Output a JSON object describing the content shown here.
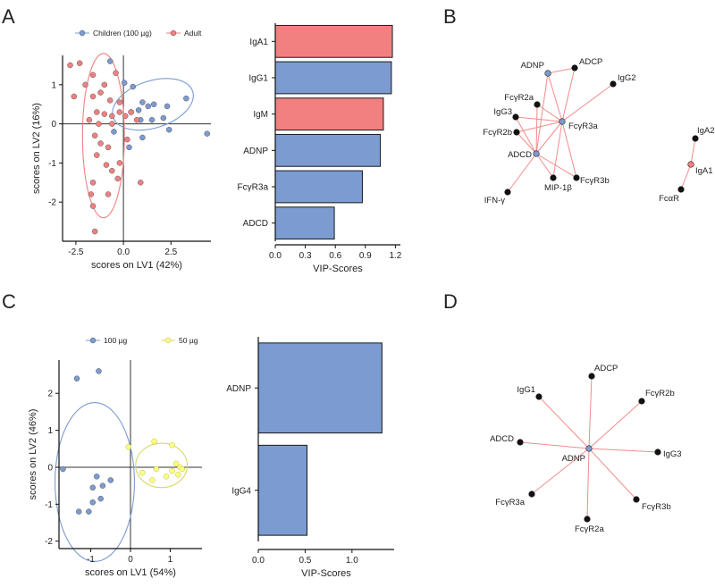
{
  "panel_labels": {
    "a": "A",
    "b": "B",
    "c": "C",
    "d": "D"
  },
  "colors": {
    "blue": "#7b9bd1",
    "red": "#f28080",
    "yellow": "#ffff80",
    "yellow_stroke": "#d8d860",
    "edge": "#f28c8c",
    "node_black": "#111111"
  },
  "chart_data": [
    {
      "id": "A_scores",
      "type": "scatter",
      "title": "",
      "xlabel": "scores on LV1 (42%)",
      "ylabel": "scores on LV2 (16%)",
      "xlim": [
        -3.2,
        4.6
      ],
      "ylim": [
        -3.0,
        1.75
      ],
      "xticks": [
        -2.5,
        0.0,
        2.5
      ],
      "xtick_labels": [
        "-2.5",
        "0.0",
        "2.5"
      ],
      "yticks": [
        1,
        0,
        -1,
        -2
      ],
      "ytick_labels": [
        "1",
        "0",
        "-1",
        "-2"
      ],
      "legend": [
        {
          "name": "Children (100 µg)",
          "color": "#7b9bd1"
        },
        {
          "name": "Adult",
          "color": "#f28080"
        }
      ],
      "series": [
        {
          "name": "Children (100 µg)",
          "color": "#7b9bd1",
          "points": [
            [
              -0.7,
              1.6
            ],
            [
              0.05,
              1.05
            ],
            [
              0.5,
              0.95
            ],
            [
              1.0,
              0.55
            ],
            [
              1.3,
              0.45
            ],
            [
              1.6,
              0.5
            ],
            [
              2.3,
              0.45
            ],
            [
              2.1,
              0.15
            ],
            [
              3.3,
              0.65
            ],
            [
              0.8,
              0.35
            ],
            [
              0.4,
              0.3
            ],
            [
              0.9,
              0.1
            ],
            [
              1.5,
              0.1
            ],
            [
              2.4,
              -0.15
            ],
            [
              1.0,
              -0.35
            ],
            [
              4.4,
              -0.25
            ],
            [
              -0.5,
              -0.2
            ],
            [
              0.3,
              -0.6
            ]
          ]
        },
        {
          "name": "Adult",
          "color": "#f28080",
          "points": [
            [
              -2.8,
              1.5
            ],
            [
              -2.3,
              1.55
            ],
            [
              -1.6,
              1.25
            ],
            [
              -2.0,
              1.0
            ],
            [
              -1.0,
              1.0
            ],
            [
              -0.4,
              1.3
            ],
            [
              -1.2,
              0.8
            ],
            [
              -1.6,
              0.7
            ],
            [
              -2.6,
              0.7
            ],
            [
              -0.7,
              0.6
            ],
            [
              -0.2,
              0.55
            ],
            [
              -1.4,
              0.3
            ],
            [
              -1.0,
              0.25
            ],
            [
              -0.6,
              0.2
            ],
            [
              -0.2,
              0.3
            ],
            [
              -1.8,
              0.1
            ],
            [
              -1.3,
              0.0
            ],
            [
              -0.6,
              0.0
            ],
            [
              0.1,
              0.2
            ],
            [
              0.4,
              0.3
            ],
            [
              0.7,
              0.1
            ],
            [
              -1.5,
              -0.3
            ],
            [
              -1.2,
              -0.5
            ],
            [
              -0.8,
              -0.6
            ],
            [
              0.2,
              -0.4
            ],
            [
              -1.4,
              -0.8
            ],
            [
              -0.9,
              -1.05
            ],
            [
              -0.2,
              -1.0
            ],
            [
              -0.6,
              -1.2
            ],
            [
              -1.6,
              -1.5
            ],
            [
              -0.3,
              -1.4
            ],
            [
              0.9,
              -1.5
            ],
            [
              -1.7,
              -1.8
            ],
            [
              -0.8,
              -1.8
            ],
            [
              -1.6,
              -2.1
            ],
            [
              -1.5,
              -2.75
            ]
          ]
        }
      ],
      "ellipses": [
        {
          "series": "Children (100 µg)",
          "center": [
            1.55,
            0.5
          ],
          "rx": 2.2,
          "ry": 0.6,
          "angle_deg": -18
        },
        {
          "series": "Adult",
          "center": [
            -1.05,
            -0.3
          ],
          "rx": 1.1,
          "ry": 2.1,
          "angle_deg": 0
        }
      ]
    },
    {
      "id": "A_vip",
      "type": "bar",
      "orientation": "horizontal",
      "xlabel": "VIP-Scores",
      "xlim": [
        0,
        1.25
      ],
      "xticks": [
        0.0,
        0.3,
        0.6,
        0.9,
        1.2
      ],
      "xtick_labels": [
        "0.0",
        "0.3",
        "0.6",
        "0.9",
        "1.2"
      ],
      "categories": [
        "IgA1",
        "IgG1",
        "IgM",
        "ADNP",
        "FcγR3a",
        "ADCD"
      ],
      "values": [
        1.17,
        1.16,
        1.08,
        1.05,
        0.87,
        0.59
      ],
      "bar_colors": [
        "#f28080",
        "#7b9bd1",
        "#f28080",
        "#7b9bd1",
        "#7b9bd1",
        "#7b9bd1"
      ]
    },
    {
      "id": "C_scores",
      "type": "scatter",
      "title": "",
      "xlabel": "scores on LV1 (54%)",
      "ylabel": "scores on LV2 (46%)",
      "xlim": [
        -1.8,
        1.8
      ],
      "ylim": [
        -2.2,
        2.9
      ],
      "xticks": [
        -1,
        0,
        1
      ],
      "xtick_labels": [
        "-1",
        "0",
        "1"
      ],
      "yticks": [
        2,
        1,
        0,
        -1,
        -2
      ],
      "ytick_labels": [
        "2",
        "1",
        "0",
        "-1",
        "-2"
      ],
      "legend": [
        {
          "name": "100 µg",
          "color": "#7b9bd1"
        },
        {
          "name": "50 µg",
          "color": "#ffff80"
        }
      ],
      "series": [
        {
          "name": "100 µg",
          "color": "#7b9bd1",
          "points": [
            [
              -1.35,
              2.4
            ],
            [
              -0.8,
              2.6
            ],
            [
              -1.7,
              -0.05
            ],
            [
              -0.85,
              -0.25
            ],
            [
              -0.7,
              -0.5
            ],
            [
              -0.95,
              -0.55
            ],
            [
              -0.5,
              -0.35
            ],
            [
              -0.75,
              -0.85
            ],
            [
              -0.95,
              -0.95
            ],
            [
              -1.3,
              -1.2
            ],
            [
              -1.05,
              -1.2
            ]
          ]
        },
        {
          "name": "50 µg",
          "color": "#ffff80",
          "points": [
            [
              -0.05,
              0.55
            ],
            [
              0.6,
              0.7
            ],
            [
              1.05,
              0.6
            ],
            [
              0.3,
              -0.15
            ],
            [
              0.55,
              -0.35
            ],
            [
              0.65,
              -0.05
            ],
            [
              1.15,
              0.1
            ],
            [
              1.25,
              0.0
            ],
            [
              1.05,
              -0.1
            ],
            [
              1.3,
              -0.05
            ],
            [
              0.9,
              -0.25
            ],
            [
              1.2,
              -0.2
            ]
          ]
        }
      ],
      "ellipses": [
        {
          "series": "100 µg",
          "center": [
            -0.9,
            -0.4
          ],
          "rx": 1.0,
          "ry": 2.15,
          "angle_deg": 0
        },
        {
          "series": "50 µg",
          "center": [
            0.78,
            0.05
          ],
          "rx": 0.65,
          "ry": 0.6,
          "angle_deg": 0
        }
      ]
    },
    {
      "id": "C_vip",
      "type": "bar",
      "orientation": "horizontal",
      "xlabel": "VIP-Scores",
      "xlim": [
        0,
        1.45
      ],
      "xticks": [
        0.0,
        0.5,
        1.0
      ],
      "xtick_labels": [
        "0.0",
        "0.5",
        "1.0"
      ],
      "categories": [
        "ADNP",
        "IgG4"
      ],
      "values": [
        1.32,
        0.52
      ],
      "bar_colors": [
        "#7b9bd1",
        "#7b9bd1"
      ]
    },
    {
      "id": "B_network",
      "type": "network",
      "nodes": [
        {
          "label": "ADNP",
          "fill": "#7b9bd1"
        },
        {
          "label": "ADCP",
          "fill": "#111111"
        },
        {
          "label": "IgG2",
          "fill": "#111111"
        },
        {
          "label": "FcγR2a",
          "fill": "#111111"
        },
        {
          "label": "IgG3",
          "fill": "#111111"
        },
        {
          "label": "FcγR2b",
          "fill": "#111111"
        },
        {
          "label": "FcγR3a",
          "fill": "#7b9bd1"
        },
        {
          "label": "ADCD",
          "fill": "#7b9bd1"
        },
        {
          "label": "FcγR3b",
          "fill": "#111111"
        },
        {
          "label": "MIP-1β",
          "fill": "#111111"
        },
        {
          "label": "IFN-γ",
          "fill": "#111111"
        },
        {
          "label": "IgA2",
          "fill": "#111111"
        },
        {
          "label": "IgA1",
          "fill": "#f28080"
        },
        {
          "label": "FcαR",
          "fill": "#111111"
        }
      ],
      "edges": [
        [
          "ADNP",
          "ADCP"
        ],
        [
          "ADNP",
          "FcγR3a"
        ],
        [
          "ADNP",
          "ADCD"
        ],
        [
          "ADCP",
          "FcγR3a"
        ],
        [
          "IgG2",
          "FcγR3a"
        ],
        [
          "FcγR2a",
          "FcγR3a"
        ],
        [
          "FcγR2a",
          "ADCD"
        ],
        [
          "IgG3",
          "FcγR3a"
        ],
        [
          "IgG3",
          "ADCD"
        ],
        [
          "FcγR2b",
          "FcγR3a"
        ],
        [
          "FcγR2b",
          "ADCD"
        ],
        [
          "ADCD",
          "FcγR3a"
        ],
        [
          "FcγR3b",
          "FcγR3a"
        ],
        [
          "FcγR3b",
          "ADCD"
        ],
        [
          "MIP-1β",
          "FcγR3a"
        ],
        [
          "MIP-1β",
          "ADCD"
        ],
        [
          "IFN-γ",
          "ADCD"
        ],
        [
          "IgA2",
          "IgA1"
        ],
        [
          "IgA1",
          "FcαR"
        ]
      ]
    },
    {
      "id": "D_network",
      "type": "network",
      "nodes": [
        {
          "label": "ADNP",
          "fill": "#7b9bd1"
        },
        {
          "label": "ADCP",
          "fill": "#111111"
        },
        {
          "label": "IgG1",
          "fill": "#111111"
        },
        {
          "label": "FcγR2b",
          "fill": "#111111"
        },
        {
          "label": "ADCD",
          "fill": "#111111"
        },
        {
          "label": "IgG3",
          "fill": "#111111"
        },
        {
          "label": "FcγR3a",
          "fill": "#111111"
        },
        {
          "label": "FcγR3b",
          "fill": "#111111"
        },
        {
          "label": "FcγR2a",
          "fill": "#111111"
        }
      ],
      "edges": [
        [
          "ADNP",
          "ADCP"
        ],
        [
          "ADNP",
          "IgG1"
        ],
        [
          "ADNP",
          "FcγR2b"
        ],
        [
          "ADNP",
          "ADCD"
        ],
        [
          "ADNP",
          "IgG3"
        ],
        [
          "ADNP",
          "FcγR3a"
        ],
        [
          "ADNP",
          "FcγR3b"
        ],
        [
          "ADNP",
          "FcγR2a"
        ]
      ]
    }
  ]
}
